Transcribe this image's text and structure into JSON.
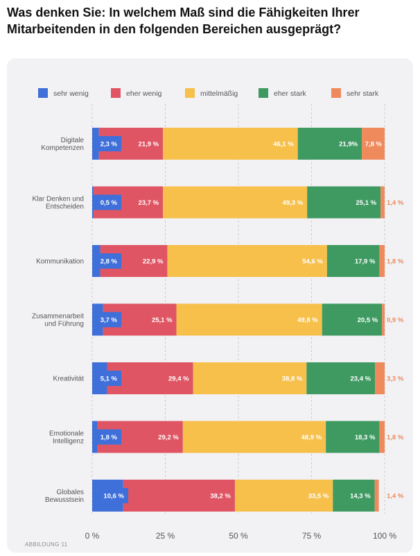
{
  "title": "Was denken Sie: In welchem Maß sind die Fähigkeiten Ihrer Mitarbeitenden in den folgenden Bereichen ausgeprägt?",
  "figure_label": "ABBILDUNG 11",
  "colors": {
    "sehr_wenig": "#3f6fd8",
    "eher_wenig": "#e05563",
    "mittelmaessig": "#f6c04b",
    "eher_stark": "#3f9a62",
    "sehr_stark": "#ee8a5c",
    "outside_label": "#ee8a5c",
    "panel_bg": "#f2f2f5"
  },
  "chart_data": {
    "type": "bar",
    "orientation": "horizontal",
    "stacked": true,
    "categories": [
      [
        "Digitale",
        "Kompetenzen"
      ],
      [
        "Klar Denken und",
        "Entscheiden"
      ],
      [
        "Kommunikation"
      ],
      [
        "Zusammenarbeit",
        "und Führung"
      ],
      [
        "Kreativität"
      ],
      [
        "Emotionale",
        "Intelligenz"
      ],
      [
        "Globales",
        "Bewusstsein"
      ]
    ],
    "series": [
      {
        "name": "sehr wenig",
        "color_key": "sehr_wenig",
        "values": [
          2.3,
          0.5,
          2.8,
          3.7,
          5.1,
          1.8,
          10.6
        ],
        "labels": [
          "2,3 %",
          "0,5 %",
          "2,8 %",
          "3,7 %",
          "5,1 %",
          "1,8 %",
          "10,6 %"
        ]
      },
      {
        "name": "eher wenig",
        "color_key": "eher_wenig",
        "values": [
          21.9,
          23.7,
          22.9,
          25.1,
          29.4,
          29.2,
          38.2
        ],
        "labels": [
          "21,9 %",
          "23,7 %",
          "22,9 %",
          "25,1 %",
          "29,4 %",
          "29,2 %",
          "38,2 %"
        ]
      },
      {
        "name": "mittelmäßig",
        "color_key": "mittelmaessig",
        "values": [
          46.1,
          49.3,
          54.6,
          49.8,
          38.8,
          48.9,
          33.5
        ],
        "labels": [
          "46,1 %",
          "49,3 %",
          "54,6 %",
          "49,8 %",
          "38,8 %",
          "48,9 %",
          "33,5 %"
        ]
      },
      {
        "name": "eher stark",
        "color_key": "eher_stark",
        "values": [
          21.9,
          25.1,
          17.9,
          20.5,
          23.4,
          18.3,
          14.3
        ],
        "labels": [
          "21,9%",
          "25,1 %",
          "17,9 %",
          "20,5 %",
          "23,4 %",
          "18,3 %",
          "14,3 %"
        ]
      },
      {
        "name": "sehr stark",
        "color_key": "sehr_stark",
        "values": [
          7.8,
          1.4,
          1.8,
          0.9,
          3.3,
          1.8,
          1.4
        ],
        "labels": [
          "7,8 %",
          "1,4 %",
          "1,8 %",
          "0,9 %",
          "3,3 %",
          "1,8 %",
          "1,4 %"
        ]
      }
    ],
    "xlim": [
      0,
      100
    ],
    "xticks": [
      0,
      25,
      50,
      75,
      100
    ],
    "xtick_labels": [
      "0 %",
      "25 %",
      "50 %",
      "75 %",
      "100 %"
    ],
    "grid": true,
    "legend_position": "top"
  }
}
